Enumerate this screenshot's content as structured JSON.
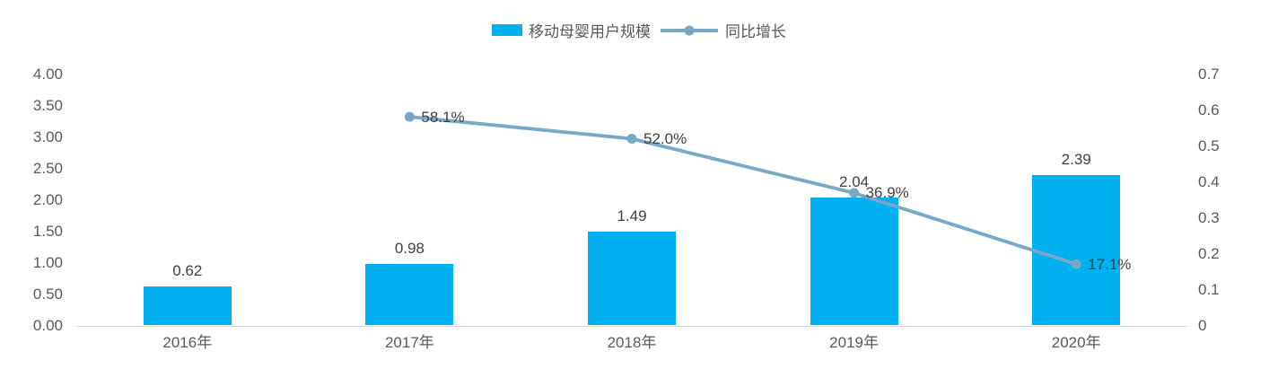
{
  "legend": {
    "bar_label": "移动母婴用户规模",
    "line_label": "同比增长"
  },
  "chart_data": {
    "type": "combo",
    "categories": [
      "2016年",
      "2017年",
      "2018年",
      "2019年",
      "2020年"
    ],
    "series": [
      {
        "name": "移动母婴用户规模",
        "type": "bar",
        "axis": "left",
        "values": [
          0.62,
          0.98,
          1.49,
          2.04,
          2.39
        ],
        "labels": [
          "0.62",
          "0.98",
          "1.49",
          "2.04",
          "2.39"
        ],
        "color": "#00B0F0"
      },
      {
        "name": "同比增长",
        "type": "line",
        "axis": "right",
        "values": [
          null,
          0.581,
          0.52,
          0.369,
          0.171
        ],
        "labels": [
          null,
          "58.1%",
          "52.0%",
          "36.9%",
          "17.1%"
        ],
        "color": "#78A8C6"
      }
    ],
    "left_axis": {
      "min": 0,
      "max": 4,
      "step": 0.5,
      "tick_labels": [
        "0.00",
        "0.50",
        "1.00",
        "1.50",
        "2.00",
        "2.50",
        "3.00",
        "3.50",
        "4.00"
      ]
    },
    "right_axis": {
      "min": 0,
      "max": 0.7,
      "step": 0.1,
      "tick_labels": [
        "0",
        "0.1",
        "0.2",
        "0.3",
        "0.4",
        "0.5",
        "0.6",
        "0.7"
      ]
    },
    "grid": false,
    "legend_position": "top",
    "title": ""
  },
  "colors": {
    "bar": "#00B0F0",
    "line": "#78A8C6",
    "axis_text": "#595959",
    "data_label_text": "#404040",
    "axis_line": "#D9D9D9",
    "background": "#FFFFFF"
  }
}
